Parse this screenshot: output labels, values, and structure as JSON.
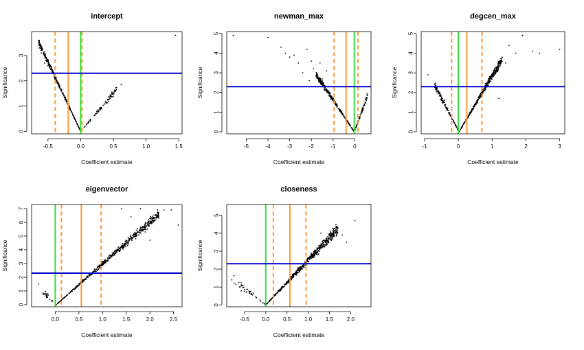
{
  "chart_data": [
    {
      "type": "scatter",
      "title": "intercept",
      "xlabel": "Coefficient estimate",
      "ylabel": "Significance",
      "xlim": [
        -0.75,
        1.55
      ],
      "ylim": [
        -0.1,
        3.95
      ],
      "xticks": [
        -0.5,
        0.0,
        0.5,
        1.0,
        1.5
      ],
      "xtick_labels": [
        "-0.5",
        "0.0",
        "0.5",
        "1.0",
        "1.5"
      ],
      "yticks": [
        0,
        1,
        2,
        3
      ],
      "ytick_labels": [
        "0",
        "1",
        "2",
        "3"
      ],
      "hlines": [
        {
          "y": 2.3,
          "color": "#0000cc"
        }
      ],
      "vlines": [
        {
          "x": -0.39,
          "color": "#ff9933",
          "dash": true
        },
        {
          "x": -0.19,
          "color": "#ff9933",
          "dash": false
        },
        {
          "x": 0.0,
          "color": "#33dd33",
          "dash": false
        },
        {
          "x": 0.02,
          "color": "#ff9933",
          "dash": true
        }
      ],
      "points": {
        "mode": "v",
        "x0": 0.0,
        "left": [
          -0.65,
          1.0
        ],
        "right": [
          0.55,
          1.3
        ],
        "lcount": 320,
        "rcount": 90,
        "lslope": 5.5,
        "rslope": 3.0,
        "spread": 0.18,
        "extra": [
          [
            -0.63,
            3.3
          ],
          [
            -0.6,
            3.1
          ],
          [
            -0.55,
            2.7
          ],
          [
            1.45,
            3.8
          ],
          [
            0.62,
            1.85
          ],
          [
            -0.5,
            2.6
          ]
        ]
      }
    },
    {
      "type": "scatter",
      "title": "newman_max",
      "xlabel": "Coefficient estimate",
      "ylabel": "Significance",
      "xlim": [
        -5.9,
        0.75
      ],
      "ylim": [
        -0.1,
        5.1
      ],
      "xticks": [
        -5,
        -4,
        -3,
        -2,
        -1,
        0
      ],
      "xtick_labels": [
        "-5",
        "-4",
        "-3",
        "-2",
        "-1",
        "0"
      ],
      "yticks": [
        0,
        1,
        2,
        3,
        4,
        5
      ],
      "ytick_labels": [
        "0",
        "1",
        "2",
        "3",
        "4",
        "5"
      ],
      "hlines": [
        {
          "y": 2.3,
          "color": "#0000cc"
        }
      ],
      "vlines": [
        {
          "x": -0.95,
          "color": "#ff9933",
          "dash": true
        },
        {
          "x": -0.4,
          "color": "#ff9933",
          "dash": false
        },
        {
          "x": -0.02,
          "color": "#33dd33",
          "dash": false
        },
        {
          "x": 0.15,
          "color": "#ff9933",
          "dash": true
        }
      ],
      "points": {
        "mode": "v",
        "x0": -0.02,
        "left": [
          -1.8,
          2.8
        ],
        "right": [
          0.6,
          1.8
        ],
        "lcount": 300,
        "rcount": 80,
        "lslope": 1.65,
        "rslope": 3.0,
        "spread": 0.25,
        "extra": [
          [
            -5.6,
            4.9
          ],
          [
            -4.0,
            4.8
          ],
          [
            -3.4,
            4.3
          ],
          [
            -3.2,
            4.0
          ],
          [
            -2.8,
            3.9
          ],
          [
            -2.2,
            4.2
          ],
          [
            -2.0,
            3.6
          ],
          [
            -2.6,
            3.5
          ],
          [
            -1.6,
            3.5
          ],
          [
            -1.9,
            3.2
          ],
          [
            -2.4,
            3.0
          ],
          [
            -1.3,
            3.1
          ],
          [
            -3.0,
            3.8
          ],
          [
            -1.5,
            2.7
          ],
          [
            -2.1,
            2.6
          ]
        ]
      }
    },
    {
      "type": "scatter",
      "title": "degcen_max",
      "xlabel": "Coefficient estimate",
      "ylabel": "Significance",
      "xlim": [
        -1.1,
        3.15
      ],
      "ylim": [
        -0.1,
        5.1
      ],
      "xticks": [
        -1,
        0,
        1,
        2,
        3
      ],
      "xtick_labels": [
        "-1",
        "0",
        "1",
        "2",
        "3"
      ],
      "yticks": [
        0,
        1,
        2,
        3,
        4,
        5
      ],
      "ytick_labels": [
        "0",
        "1",
        "2",
        "3",
        "4",
        "5"
      ],
      "hlines": [
        {
          "y": 2.3,
          "color": "#0000cc"
        }
      ],
      "vlines": [
        {
          "x": -0.2,
          "color": "#ff9933",
          "dash": true
        },
        {
          "x": 0.0,
          "color": "#33dd33",
          "dash": false
        },
        {
          "x": 0.25,
          "color": "#ff9933",
          "dash": false
        },
        {
          "x": 0.7,
          "color": "#ff9933",
          "dash": true
        }
      ],
      "points": {
        "mode": "v",
        "x0": 0.02,
        "left": [
          -0.7,
          2.3
        ],
        "right": [
          1.3,
          3.6
        ],
        "lcount": 120,
        "rcount": 380,
        "lslope": 3.3,
        "rslope": 2.9,
        "spread": 0.35,
        "extra": [
          [
            -0.9,
            2.9
          ],
          [
            1.9,
            4.9
          ],
          [
            2.2,
            4.1
          ],
          [
            3.0,
            4.2
          ],
          [
            1.5,
            4.4
          ],
          [
            1.7,
            4.0
          ],
          [
            2.4,
            4.0
          ],
          [
            1.2,
            1.7
          ],
          [
            1.4,
            3.5
          ]
        ]
      }
    },
    {
      "type": "scatter",
      "title": "eigenvector",
      "xlabel": "Coefficient estimate",
      "ylabel": "Significance",
      "xlim": [
        -0.5,
        2.68
      ],
      "ylim": [
        -0.15,
        7.3
      ],
      "xticks": [
        0.0,
        0.5,
        1.0,
        1.5,
        2.0,
        2.5
      ],
      "xtick_labels": [
        "0.0",
        "0.5",
        "1.0",
        "1.5",
        "2.0",
        "2.5"
      ],
      "yticks": [
        0,
        1,
        2,
        3,
        4,
        5,
        6,
        7
      ],
      "ytick_labels": [
        "0",
        "1",
        "2",
        "3",
        "4",
        "5",
        "6",
        "7"
      ],
      "hlines": [
        {
          "y": 2.3,
          "color": "#0000cc"
        }
      ],
      "vlines": [
        {
          "x": 0.0,
          "color": "#33dd33",
          "dash": false
        },
        {
          "x": 0.13,
          "color": "#ff9933",
          "dash": true
        },
        {
          "x": 0.55,
          "color": "#ff9933",
          "dash": false
        },
        {
          "x": 0.97,
          "color": "#ff9933",
          "dash": true
        }
      ],
      "points": {
        "mode": "v",
        "x0": 0.02,
        "left": [
          -0.3,
          1.0
        ],
        "right": [
          2.2,
          6.5
        ],
        "lcount": 25,
        "rcount": 520,
        "lslope": 3.3,
        "rslope": 3.05,
        "spread": 0.5,
        "extra": [
          [
            -0.35,
            1.5
          ],
          [
            1.4,
            7.0
          ],
          [
            1.8,
            7.0
          ],
          [
            2.3,
            6.9
          ],
          [
            2.45,
            6.9
          ],
          [
            2.6,
            5.8
          ],
          [
            1.6,
            6.4
          ],
          [
            1.9,
            5.3
          ],
          [
            2.0,
            4.7
          ],
          [
            1.7,
            4.8
          ]
        ]
      }
    },
    {
      "type": "scatter",
      "title": "closeness",
      "xlabel": "Coefficient estimate",
      "ylabel": "Significance",
      "xlim": [
        -0.92,
        2.48
      ],
      "ylim": [
        -0.1,
        5.6
      ],
      "xticks": [
        -0.5,
        0.0,
        0.5,
        1.0,
        1.5,
        2.0
      ],
      "xtick_labels": [
        "-0.5",
        "0.0",
        "0.5",
        "1.0",
        "1.5",
        "2.0"
      ],
      "yticks": [
        0,
        1,
        2,
        3,
        4,
        5
      ],
      "ytick_labels": [
        "0",
        "1",
        "2",
        "3",
        "4",
        "5"
      ],
      "hlines": [
        {
          "y": 2.3,
          "color": "#0000cc"
        }
      ],
      "vlines": [
        {
          "x": 0.0,
          "color": "#33dd33",
          "dash": false
        },
        {
          "x": 0.18,
          "color": "#ff9933",
          "dash": true
        },
        {
          "x": 0.57,
          "color": "#ff9933",
          "dash": false
        },
        {
          "x": 0.95,
          "color": "#ff9933",
          "dash": true
        }
      ],
      "points": {
        "mode": "v",
        "x0": 0.0,
        "left": [
          -0.75,
          1.4
        ],
        "right": [
          1.7,
          4.2
        ],
        "lcount": 40,
        "rcount": 520,
        "lslope": 1.8,
        "rslope": 2.5,
        "spread": 0.45,
        "extra": [
          [
            -0.8,
            1.4
          ],
          [
            2.45,
            5.6
          ],
          [
            2.1,
            4.7
          ],
          [
            1.6,
            4.1
          ],
          [
            1.8,
            3.9
          ],
          [
            1.3,
            4.0
          ],
          [
            1.9,
            3.5
          ]
        ]
      }
    }
  ]
}
